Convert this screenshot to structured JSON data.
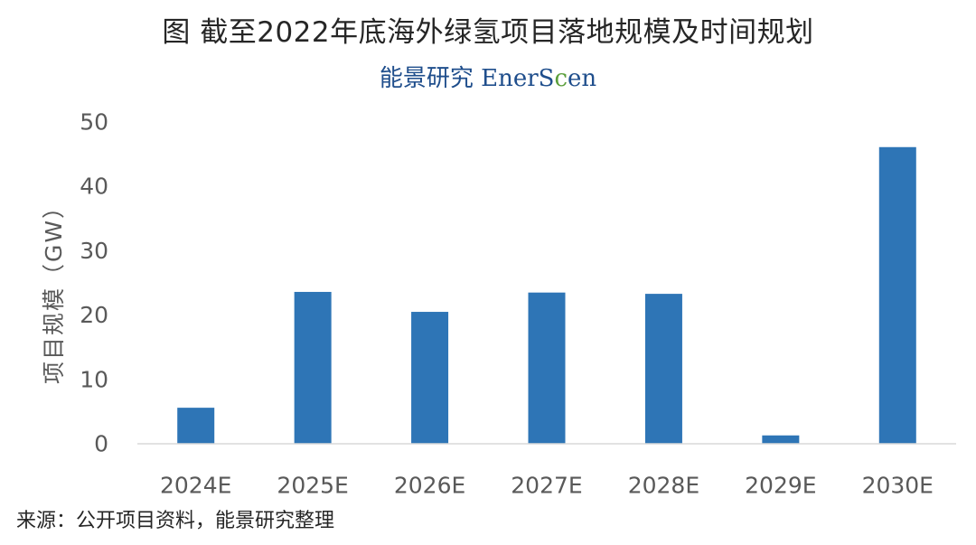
{
  "header": {
    "title": "图  截至2022年底海外绿氢项目落地规模及时间规划",
    "brand_cn": "能景研究",
    "brand_en_main": "EnerS",
    "brand_en_accent": "c",
    "brand_en_tail": "en"
  },
  "source": "来源：公开项目资料，能景研究整理",
  "colors": {
    "bar": "#2e75b6",
    "axis_text": "#595959",
    "axis_line": "#d9d9d9",
    "brand": "#1f4e8c",
    "brand_accent": "#5a9e3a"
  },
  "chart_data": {
    "type": "bar",
    "categories": [
      "2024E",
      "2025E",
      "2026E",
      "2027E",
      "2028E",
      "2029E",
      "2030E"
    ],
    "values": [
      5.6,
      23.6,
      20.5,
      23.5,
      23.3,
      1.3,
      46.1
    ],
    "ylabel": "项目规模（GW）",
    "xlabel": "",
    "ylim": [
      0,
      50
    ],
    "yticks": [
      0,
      10,
      20,
      30,
      40,
      50
    ],
    "grid": false,
    "legend": "none"
  }
}
